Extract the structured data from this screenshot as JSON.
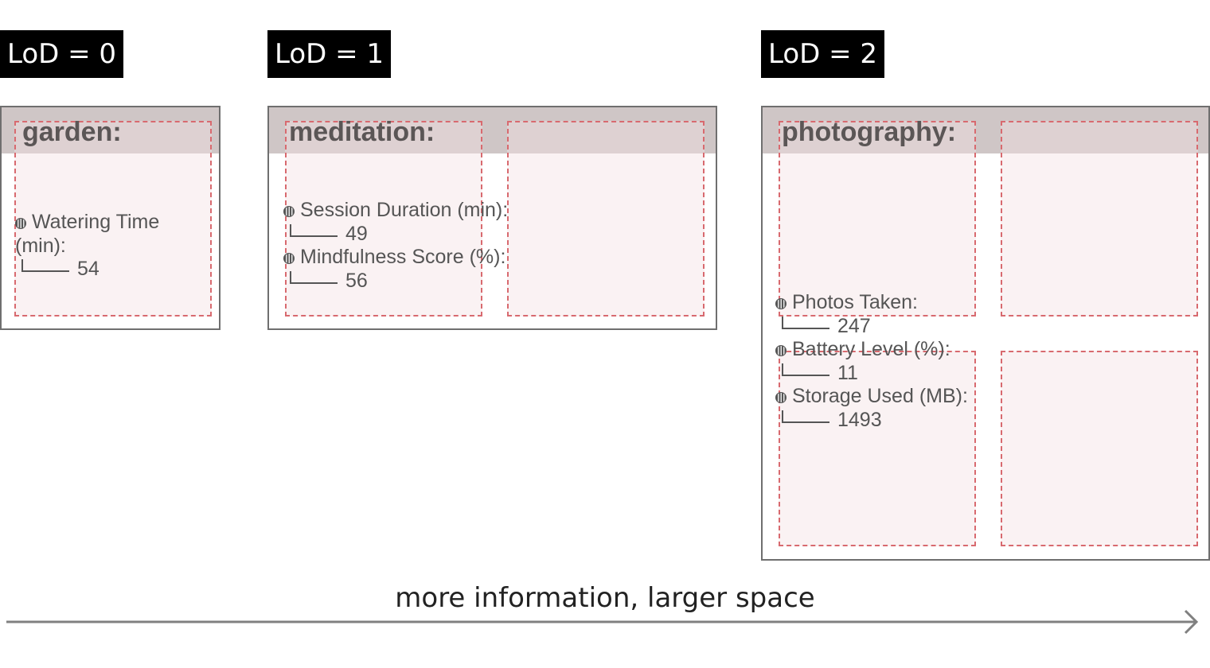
{
  "badges": [
    "LoD = 0",
    "LoD = 1",
    "LoD = 2"
  ],
  "cards": [
    {
      "title": "garden:",
      "metrics": [
        {
          "label": "Watering Time (min):",
          "value": "54"
        }
      ]
    },
    {
      "title": "meditation:",
      "metrics": [
        {
          "label": "Session Duration (min):",
          "value": "49"
        },
        {
          "label": "Mindfulness Score (%):",
          "value": "56"
        }
      ]
    },
    {
      "title": "photography:",
      "metrics": [
        {
          "label": "Photos Taken:",
          "value": "247"
        },
        {
          "label": "Battery Level (%):",
          "value": "11"
        },
        {
          "label": "Storage Used (MB):",
          "value": "1493"
        }
      ]
    }
  ],
  "caption": "more information, larger space",
  "colors": {
    "badge_bg": "#000000",
    "header_bg": "#cfc6c6",
    "dashed_cell": "#d86a6f",
    "arrow": "#808080"
  }
}
